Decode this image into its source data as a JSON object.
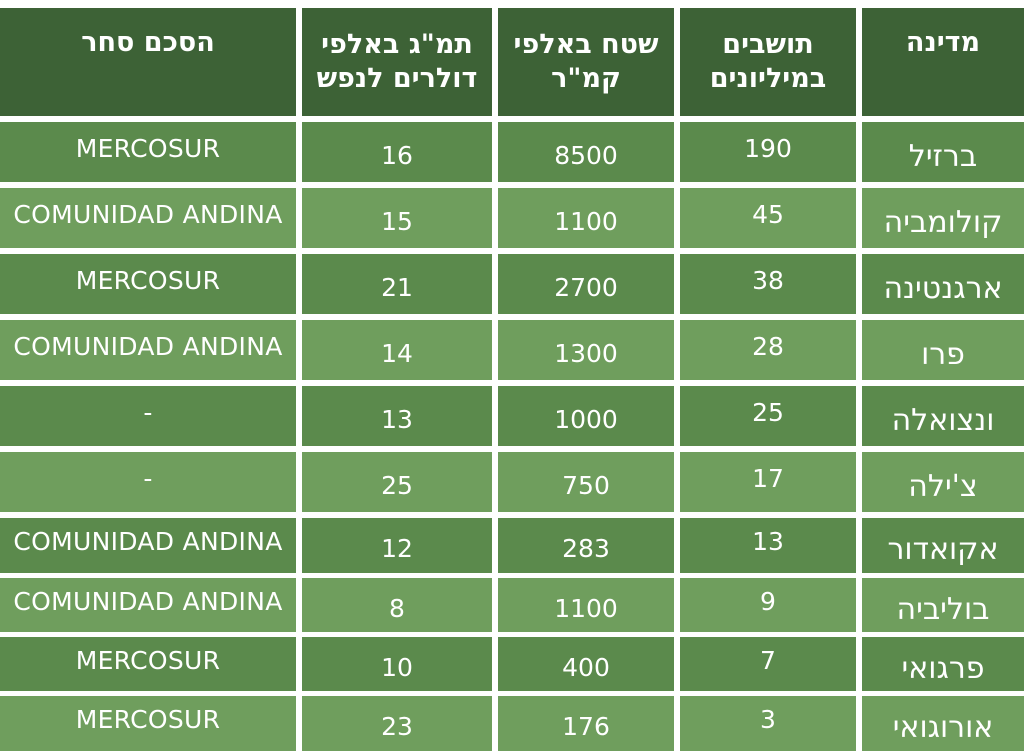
{
  "headers": [
    "מדינה",
    "תושבים\nבמיליונים",
    "שטח באלפי\nקמ\"ר",
    "תמ\"ג באלפי\nדולרים לנפש",
    "הסכם סחר"
  ],
  "rows": [
    {
      "country": "ברזיל",
      "population": "190",
      "area": "8500",
      "gdp": "16",
      "trade": "MERCOSUR"
    },
    {
      "country": "קולומביה",
      "population": "45",
      "area": "1100",
      "gdp": "15",
      "trade": "COMUNIDAD ANDINA"
    },
    {
      "country": "ארגנטינה",
      "population": "38",
      "area": "2700",
      "gdp": "21",
      "trade": "MERCOSUR"
    },
    {
      "country": "פרו",
      "population": "28",
      "area": "1300",
      "gdp": "14",
      "trade": "COMUNIDAD ANDINA"
    },
    {
      "country": "ונצואלה",
      "population": "25",
      "area": "1000",
      "gdp": "13",
      "trade": "-"
    },
    {
      "country": "צ'ילה",
      "population": "17",
      "area": "750",
      "gdp": "25",
      "trade": "-"
    },
    {
      "country": "אקואדור",
      "population": "13",
      "area": "283",
      "gdp": "12",
      "trade": "COMUNIDAD ANDINA"
    },
    {
      "country": "בוליביה",
      "population": "9",
      "area": "1100",
      "gdp": "8",
      "trade": "COMUNIDAD ANDINA"
    },
    {
      "country": "פרגואי",
      "population": "7",
      "area": "400",
      "gdp": "10",
      "trade": "MERCOSUR"
    },
    {
      "country": "אורוגואי",
      "population": "3",
      "area": "176",
      "gdp": "23",
      "trade": "MERCOSUR"
    }
  ],
  "colors": {
    "header": "#3d6236",
    "row_dark": "#5b8a4c",
    "row_light": "#6f9e5d"
  }
}
